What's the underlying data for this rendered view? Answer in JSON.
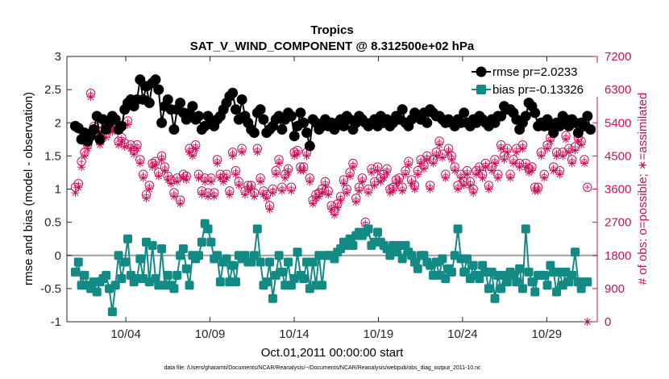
{
  "chart_data": {
    "type": "line",
    "title": "Tropics",
    "subtitle": "SAT_V_WIND_COMPONENT @ 8.312500e+02 hPa",
    "xlabel": "Oct.01,2011 00:00:00 start",
    "ylabel": "rmse and bias (model - observation)",
    "ylabel_right": "# of obs: o=possible; ∗=assimilated",
    "ylim": [
      -1,
      3
    ],
    "ylim_right": [
      0,
      7200
    ],
    "xlim": [
      0.5,
      32
    ],
    "x_tick_values": [
      4,
      9,
      14,
      19,
      24,
      29
    ],
    "x_tick_labels": [
      "10/04",
      "10/09",
      "10/14",
      "10/19",
      "10/24",
      "10/29"
    ],
    "y_tick_labels": [
      "-1",
      "-0.5",
      "0",
      "0.5",
      "1",
      "1.5",
      "2",
      "2.5",
      "3"
    ],
    "y_tick_labels_right": [
      "0",
      "900",
      "1800",
      "2700",
      "3600",
      "4500",
      "5400",
      "6300",
      "7200"
    ],
    "legend": {
      "position": "top-right",
      "rmse_label": "rmse pr=2.0233",
      "bias_label": "bias pr=-0.13326"
    },
    "colors": {
      "rmse": "#000000",
      "bias": "#138a84",
      "obs": "#c8105a",
      "zero_line": "#a0a0a0"
    },
    "series": [
      {
        "name": "rmse",
        "values": [
          1.95,
          1.92,
          1.75,
          1.85,
          1.72,
          1.8,
          1.9,
          2.1,
          1.75,
          2.05,
          1.9,
          2.0,
          2.1,
          2.05,
          1.9,
          1.95,
          2.2,
          2.3,
          2.35,
          2.25,
          2.35,
          2.65,
          2.35,
          2.55,
          2.3,
          2.6,
          2.65,
          2.5,
          2.0,
          2.25,
          2.35,
          2.2,
          1.9,
          2.2,
          2.3,
          2.15,
          2.05,
          2.15,
          2.25,
          2.05,
          2.1,
          1.9,
          1.95,
          2.1,
          2.0,
          1.95,
          2.05,
          2.1,
          2.2,
          2.3,
          2.4,
          2.45,
          2.2,
          2.05,
          2.35,
          2.1,
          2.0,
          1.9,
          1.85,
          2.15,
          2.2,
          2.05,
          1.85,
          1.9,
          1.95,
          2.05,
          2.1,
          1.9,
          2.05,
          2.15,
          2.1,
          1.8,
          1.95,
          2.15,
          2.0,
          1.85,
          1.65,
          2.05,
          2.0,
          1.9,
          1.95,
          2.05,
          1.95,
          2.0,
          1.9,
          2.0,
          2.05,
          1.95,
          2.1,
          2.05,
          1.9,
          2.0,
          2.1,
          2.05,
          2.0,
          1.95,
          2.0,
          2.05,
          1.95,
          2.1,
          2.0,
          2.05,
          1.95,
          2.0,
          2.1,
          2.05,
          2.2,
          2.0,
          1.95,
          2.05,
          2.15,
          2.1,
          2.05,
          2.15,
          2.0,
          2.2,
          2.15,
          2.1,
          2.1,
          2.05,
          2.0,
          2.05,
          2.0,
          1.95,
          2.05,
          2.0,
          2.15,
          2.0,
          1.95,
          2.05,
          2.0,
          2.1,
          2.05,
          2.0,
          1.95,
          2.05,
          2.0,
          2.1,
          2.1,
          2.25,
          2.2,
          2.2,
          2.15,
          2.05,
          1.9,
          2.0,
          2.1,
          2.3,
          2.25,
          2.15,
          1.95,
          2.0,
          1.95,
          2.05,
          1.95,
          1.85,
          2.0,
          1.95,
          2.1,
          2.05,
          1.95,
          2.05,
          2.0,
          1.85,
          2.0,
          1.95,
          2.1,
          1.9
        ]
      },
      {
        "name": "bias",
        "values": [
          -0.25,
          -0.1,
          -0.45,
          -0.3,
          -0.45,
          -0.5,
          -0.4,
          -0.55,
          -0.4,
          -0.35,
          -0.3,
          -0.5,
          -0.85,
          -0.45,
          0.0,
          -0.35,
          -0.1,
          0.25,
          -0.3,
          -0.4,
          -0.35,
          -0.05,
          -0.35,
          0.2,
          -0.4,
          0.15,
          -0.35,
          -0.45,
          0.1,
          -0.45,
          -0.3,
          -0.45,
          -0.5,
          -0.3,
          0.0,
          0.1,
          -0.2,
          -0.45,
          0.0,
          -0.05,
          0.0,
          0.2,
          0.48,
          0.4,
          0.2,
          -0.05,
          0.0,
          -0.4,
          -0.1,
          -0.05,
          -0.4,
          -0.15,
          -0.4,
          0.0,
          -0.05,
          0.0,
          -0.1,
          -0.1,
          0.0,
          0.4,
          -0.1,
          -0.45,
          -0.4,
          -0.1,
          -0.65,
          -0.3,
          0.0,
          -0.25,
          -0.45,
          -0.1,
          -0.45,
          -0.35,
          0.05,
          -0.3,
          -0.35,
          -0.1,
          -0.5,
          -0.1,
          -0.45,
          0.0,
          -0.45,
          0.0,
          0.0,
          0.0,
          -0.05,
          0.05,
          0.1,
          0.2,
          0.15,
          0.25,
          0.15,
          0.3,
          0.35,
          0.3,
          0.35,
          0.4,
          0.15,
          0.2,
          0.35,
          0.2,
          0.15,
          0.1,
          0.0,
          0.15,
          0.05,
          0.15,
          -0.05,
          0.15,
          0.05,
          0.0,
          -0.1,
          -0.2,
          0.0,
          0.0,
          -0.1,
          -0.15,
          -0.3,
          -0.1,
          -0.3,
          -0.05,
          -0.35,
          -0.2,
          -0.25,
          0.0,
          0.4,
          -0.05,
          -0.25,
          -0.05,
          -0.35,
          -0.15,
          -0.3,
          -0.35,
          -0.15,
          -0.25,
          -0.5,
          -0.25,
          -0.65,
          -0.3,
          -0.5,
          -0.3,
          -0.4,
          -0.25,
          -0.3,
          -0.4,
          -0.2,
          -0.5,
          0.4,
          -0.25,
          -0.4,
          -0.55,
          -0.3,
          -0.3,
          -0.3,
          -0.45,
          -0.15,
          -0.25,
          -0.55,
          -0.25,
          -0.45,
          -0.25,
          -0.4,
          -0.3,
          0.05,
          -0.4,
          -0.5,
          -0.4,
          -0.4
        ]
      },
      {
        "name": "obs_possible",
        "values": [
          3650,
          3750,
          4350,
          4600,
          4800,
          6200,
          5300,
          5200,
          4900,
          5200,
          5100,
          5300,
          5250,
          5300,
          4900,
          5000,
          4850,
          5450,
          4800,
          4650,
          4800,
          4400,
          4000,
          3450,
          3700,
          4300,
          4350,
          4050,
          4500,
          4200,
          3950,
          3850,
          3500,
          3900,
          3300,
          4000,
          3950,
          4700,
          4600,
          4800,
          4000,
          3550,
          3900,
          3500,
          3900,
          3500,
          4400,
          4000,
          3900,
          4000,
          3550,
          4600,
          4100,
          3800,
          4700,
          3550,
          3700,
          3700,
          3500,
          4700,
          3900,
          3550,
          3450,
          3150,
          3600,
          4100,
          4400,
          3650,
          4000,
          4150,
          3650,
          4600,
          4650,
          4200,
          4200,
          4600,
          3900,
          3300,
          3450,
          3500,
          3600,
          3800,
          3550,
          3150,
          3000,
          3200,
          3400,
          3850,
          3600,
          4050,
          4300,
          3350,
          3650,
          3900,
          2700,
          3600,
          4150,
          3800,
          4200,
          3900,
          4000,
          4150,
          3600,
          3650,
          3850,
          3900,
          3650,
          4100,
          4350,
          3850,
          3700,
          4100,
          4400,
          4250,
          4500,
          3700,
          4400,
          4600,
          4900,
          4550,
          4000,
          4700,
          4500,
          4200,
          3700,
          4000,
          3800,
          4100,
          3800,
          3600,
          4100,
          4200,
          4000,
          4300,
          3700,
          4200,
          4400,
          4000,
          4800,
          4500,
          4700,
          4000,
          4400,
          4700,
          4300,
          4800,
          4300,
          4150,
          4200,
          3650,
          3650,
          4600,
          4000,
          4800,
          5000,
          4200,
          4600,
          4100,
          4600,
          5050,
          4700,
          4400,
          4750,
          5000,
          4900,
          4400,
          3650
        ]
      },
      {
        "name": "obs_assimilated",
        "values": [
          3500,
          3650,
          4200,
          4500,
          4700,
          6100,
          5200,
          5100,
          4800,
          5100,
          5000,
          5200,
          5150,
          5200,
          4800,
          4900,
          4750,
          5350,
          4700,
          4550,
          4700,
          4300,
          3900,
          3350,
          3600,
          4200,
          4250,
          3950,
          4400,
          4100,
          3850,
          3750,
          3400,
          3800,
          3200,
          3900,
          3850,
          4600,
          4500,
          4700,
          3900,
          3450,
          3800,
          3400,
          3800,
          3400,
          4300,
          3900,
          3800,
          3900,
          3450,
          4500,
          4000,
          3700,
          4600,
          3450,
          3600,
          3600,
          3400,
          4600,
          3800,
          3450,
          3350,
          3050,
          3500,
          4000,
          4300,
          3550,
          3900,
          4050,
          3550,
          4500,
          4550,
          4100,
          4100,
          4500,
          3800,
          3200,
          3350,
          3400,
          3500,
          3700,
          3450,
          3050,
          2900,
          3100,
          3300,
          3750,
          3500,
          3950,
          4200,
          3250,
          3550,
          3800,
          2600,
          3500,
          4050,
          3700,
          4100,
          3800,
          3900,
          4050,
          3500,
          3550,
          3750,
          3800,
          3550,
          4000,
          4250,
          3750,
          3600,
          4000,
          4300,
          4150,
          4400,
          3600,
          4300,
          4500,
          4800,
          4450,
          3900,
          4600,
          4400,
          4100,
          3600,
          3900,
          3700,
          4000,
          3700,
          3500,
          4000,
          4100,
          3900,
          4200,
          3600,
          4100,
          4300,
          3900,
          4700,
          4400,
          4600,
          3900,
          4300,
          4600,
          4200,
          4700,
          4200,
          4050,
          4100,
          3550,
          3550,
          4500,
          3900,
          4700,
          4900,
          4100,
          4500,
          4000,
          4500,
          4950,
          4600,
          4300,
          4650,
          4900,
          4800,
          4300,
          0
        ]
      }
    ]
  },
  "footer": "data file: /Users/gharamti/Documents/NCAR/Reanalysis/~/Documents/NCAR/Reanalysis/webpub/obs_diag_output_2011-10.nc"
}
